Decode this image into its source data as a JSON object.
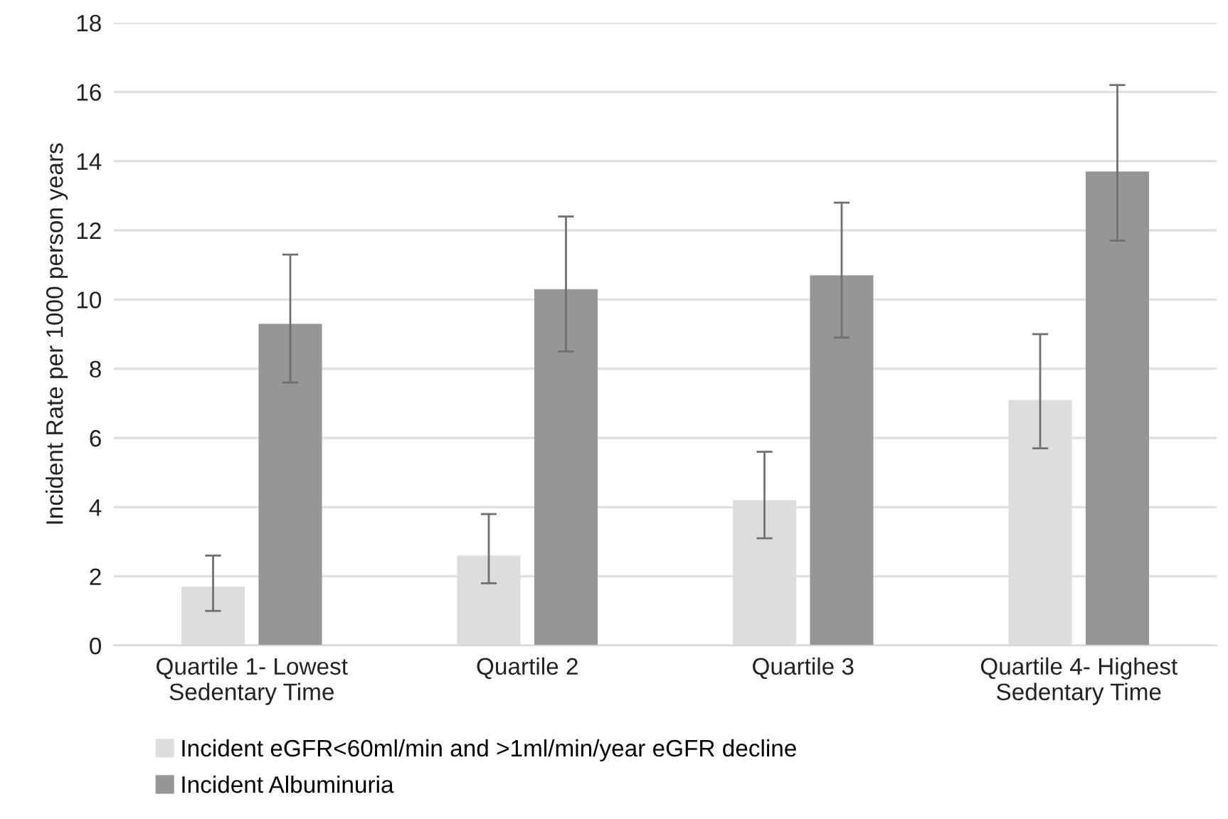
{
  "chart_data": {
    "type": "bar",
    "ylabel": "Incident Rate per 1000 person years",
    "categories": [
      "Quartile 1- Lowest\nSedentary Time",
      "Quartile 2",
      "Quartile 3",
      "Quartile 4- Highest\nSedentary Time"
    ],
    "series": [
      {
        "name": "Incident eGFR<60ml/min and >1ml/min/year eGFR decline",
        "color": "#dcdddf",
        "values": [
          1.7,
          2.6,
          4.2,
          7.1
        ],
        "errors": [
          [
            1.0,
            2.6
          ],
          [
            1.8,
            3.8
          ],
          [
            3.1,
            5.6
          ],
          [
            5.7,
            9.0
          ]
        ]
      },
      {
        "name": "Incident Albuminuria",
        "color": "#959698",
        "values": [
          9.3,
          10.3,
          10.7,
          13.7
        ],
        "errors": [
          [
            7.6,
            11.3
          ],
          [
            8.5,
            12.4
          ],
          [
            8.9,
            12.8
          ],
          [
            11.7,
            16.2
          ]
        ]
      }
    ],
    "ylim": [
      0,
      18
    ],
    "yticks": [
      0,
      2,
      4,
      6,
      8,
      10,
      12,
      14,
      16,
      18
    ],
    "grid": "y",
    "legend": "bottom left"
  }
}
